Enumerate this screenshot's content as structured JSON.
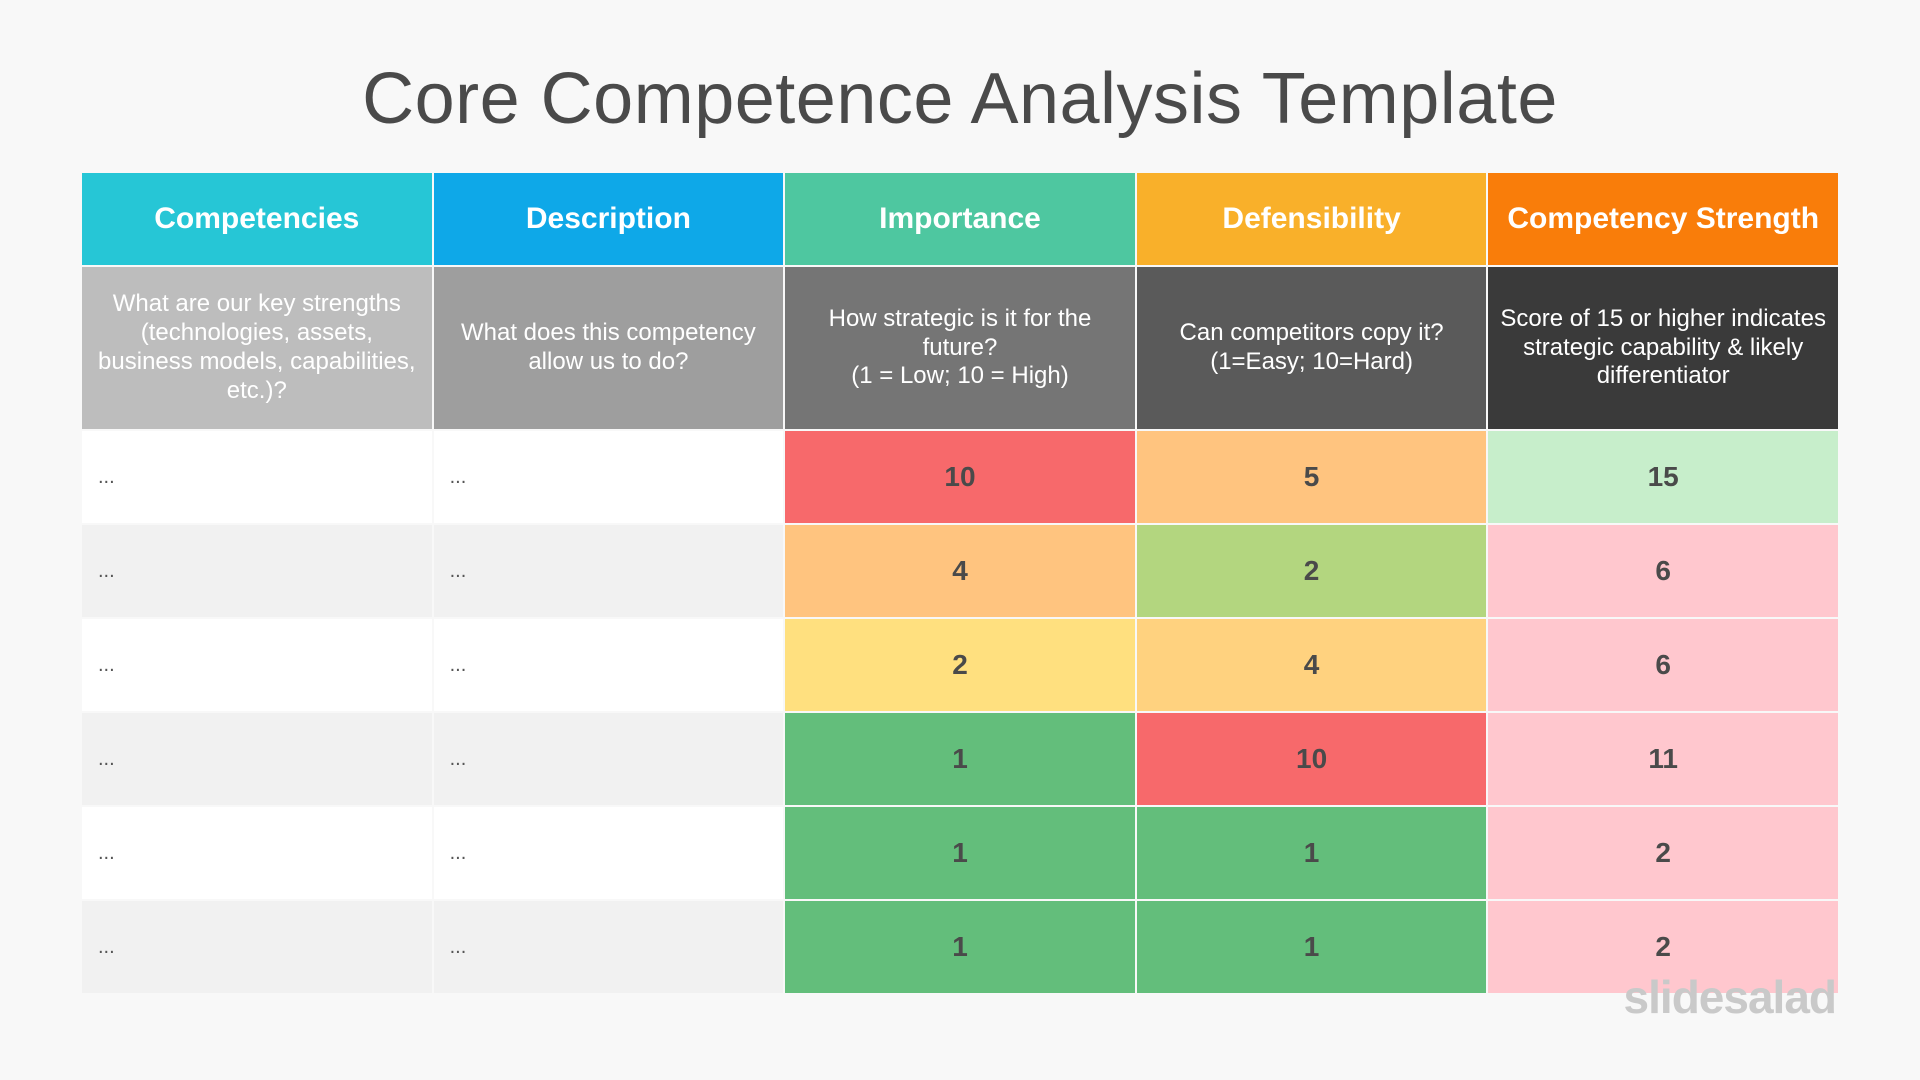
{
  "title": "Core Competence Analysis Template",
  "columns": [
    {
      "label": "Competencies",
      "color": "#26c6d6"
    },
    {
      "label": "Description",
      "color": "#0ea8e8"
    },
    {
      "label": "Importance",
      "color": "#4ec7a0"
    },
    {
      "label": "Defensibility",
      "color": "#f9b02a"
    },
    {
      "label": "Competency Strength",
      "color": "#f97d0a"
    }
  ],
  "questions": [
    {
      "text": "What are our key strengths (technologies, assets, business models, capabilities, etc.)?",
      "color": "#bdbdbd"
    },
    {
      "text": "What does this competency allow us to do?",
      "color": "#9e9e9e"
    },
    {
      "text": "How strategic is it for the future?\n(1 = Low; 10 = High)",
      "color": "#757575"
    },
    {
      "text": "Can competitors copy it?\n(1=Easy; 10=Hard)",
      "color": "#5a5a5a"
    },
    {
      "text": "Score of 15 or higher indicates strategic capability & likely differentiator",
      "color": "#3a3a3a"
    }
  ],
  "rows": [
    {
      "competency": "...",
      "description": "...",
      "importance": "10",
      "importance_color": "#f7696b",
      "defensibility": "5",
      "defensibility_color": "#ffc47f",
      "strength": "15",
      "strength_color": "#c7eecb"
    },
    {
      "competency": "...",
      "description": "...",
      "importance": "4",
      "importance_color": "#ffc47f",
      "defensibility": "2",
      "defensibility_color": "#b3d67f",
      "strength": "6",
      "strength_color": "#ffc7ce"
    },
    {
      "competency": "...",
      "description": "...",
      "importance": "2",
      "importance_color": "#ffe07f",
      "defensibility": "4",
      "defensibility_color": "#ffd27f",
      "strength": "6",
      "strength_color": "#ffc7ce"
    },
    {
      "competency": "...",
      "description": "...",
      "importance": "1",
      "importance_color": "#63be7b",
      "defensibility": "10",
      "defensibility_color": "#f7696b",
      "strength": "11",
      "strength_color": "#ffc7ce"
    },
    {
      "competency": "...",
      "description": "...",
      "importance": "1",
      "importance_color": "#63be7b",
      "defensibility": "1",
      "defensibility_color": "#63be7b",
      "strength": "2",
      "strength_color": "#ffc7ce"
    },
    {
      "competency": "...",
      "description": "...",
      "importance": "1",
      "importance_color": "#63be7b",
      "defensibility": "1",
      "defensibility_color": "#63be7b",
      "strength": "2",
      "strength_color": "#ffc7ce"
    }
  ],
  "logo": "slidesalad"
}
